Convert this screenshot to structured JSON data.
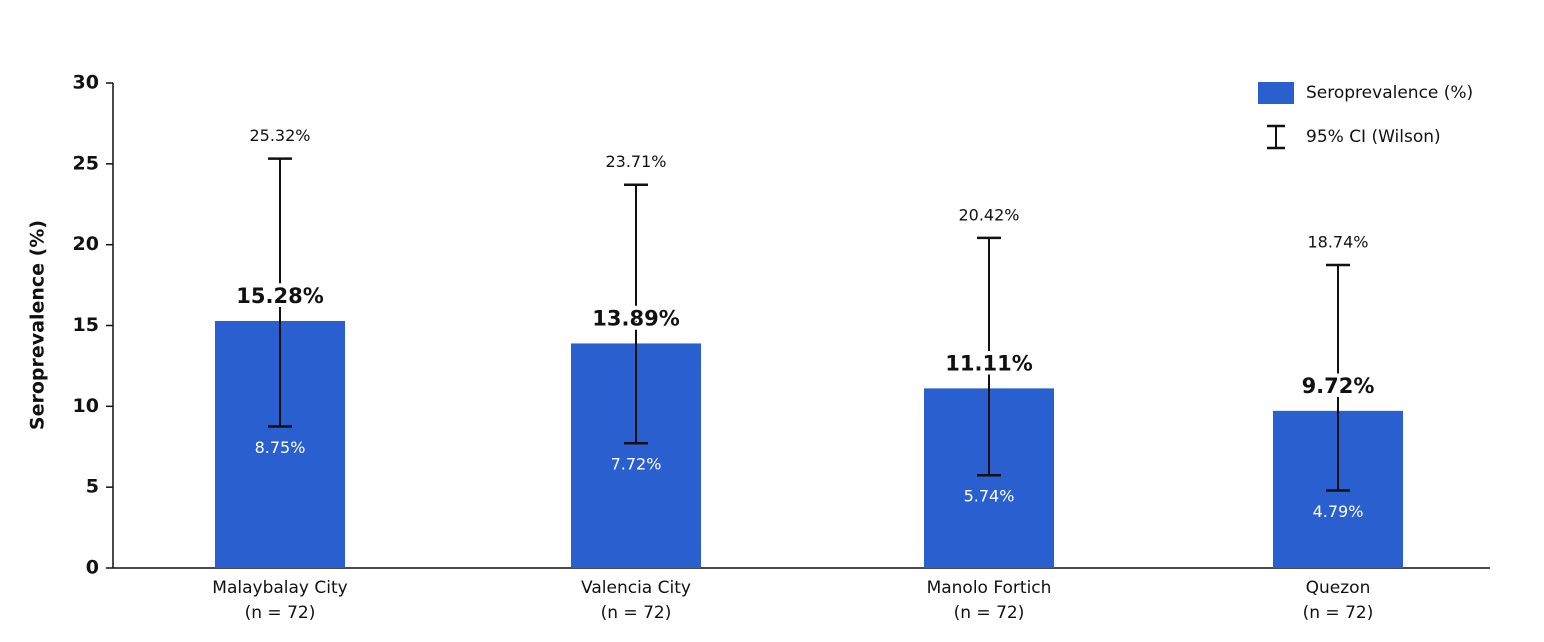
{
  "chart_data": {
    "type": "bar",
    "y_label": "Seroprevalence (%)",
    "categories": [
      "Malaybalay City",
      "Valencia City",
      "Manolo Fortich",
      "Quezon"
    ],
    "category_notes": [
      "(n = 72)",
      "(n = 72)",
      "(n = 72)",
      "(n = 72)"
    ],
    "series": [
      {
        "name": "Seroprevalence (%)",
        "color": "#2a5fcf",
        "values": [
          15.28,
          13.89,
          11.11,
          9.72
        ],
        "value_labels": [
          "15.28%",
          "13.89%",
          "11.11%",
          "9.72%"
        ],
        "ci_lower": [
          8.75,
          7.72,
          5.74,
          4.79
        ],
        "ci_lower_labels": [
          "8.75%",
          "7.72%",
          "5.74%",
          "4.79%"
        ],
        "ci_upper": [
          25.32,
          23.71,
          20.42,
          18.74
        ],
        "ci_upper_labels": [
          "25.32%",
          "23.71%",
          "20.42%",
          "18.74%"
        ]
      }
    ],
    "error_bar_name": "95% CI (Wilson)",
    "ylim": [
      0,
      30
    ],
    "yticks": [
      0,
      5,
      10,
      15,
      20,
      25,
      30
    ],
    "legend": "top-right"
  }
}
